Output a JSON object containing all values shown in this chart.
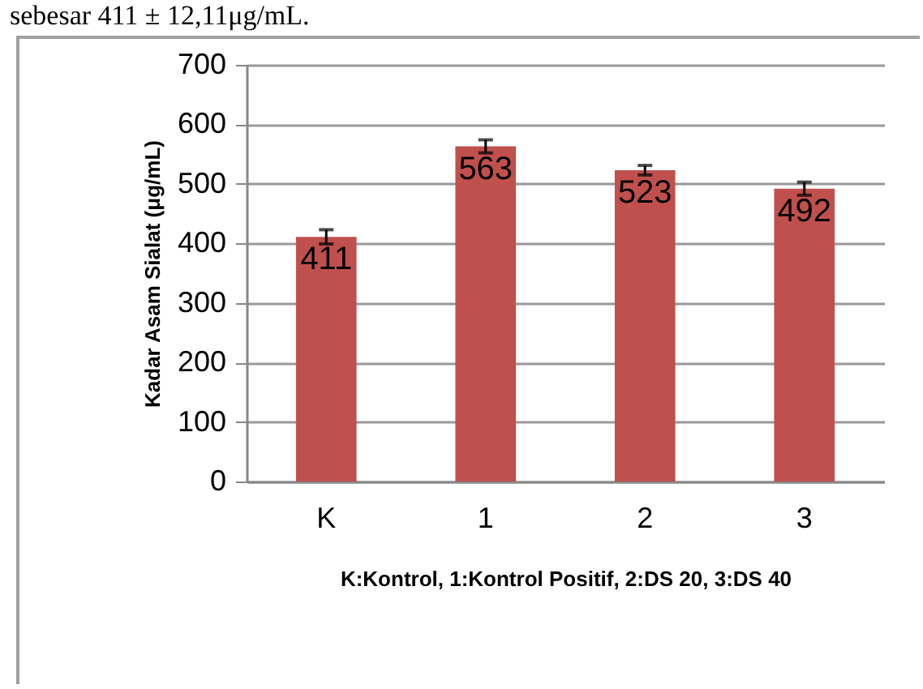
{
  "chart_data": {
    "type": "bar",
    "ylabel": "Kadar Asam Sialat (μg/mL)",
    "xlabel": "K:Kontrol, 1:Kontrol Positif, 2:DS 20, 3:DS 40",
    "annotations": [
      "sebesar 411 ± 12,11μg/mL."
    ],
    "categories": [
      "K",
      "1",
      "2",
      "3"
    ],
    "values": [
      411,
      563,
      523,
      492
    ],
    "errors": [
      12,
      11,
      8,
      11
    ],
    "color": "#c0504d",
    "data_labels": true,
    "ylim": [
      0,
      700
    ],
    "yticks": [
      0,
      100,
      200,
      300,
      400,
      500,
      600,
      700
    ],
    "grid": "y"
  }
}
